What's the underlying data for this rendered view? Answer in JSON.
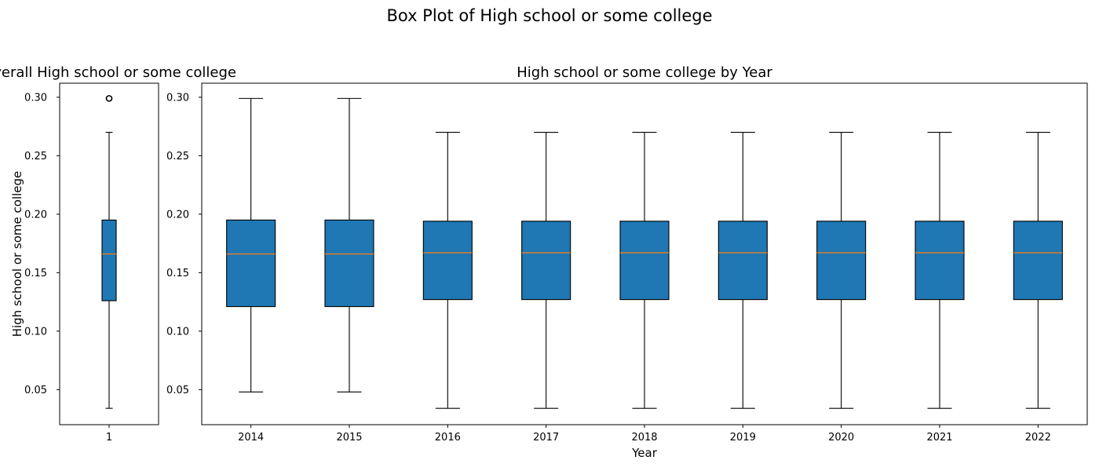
{
  "suptitle": "Box Plot of High school or some college",
  "colors": {
    "box_fill": "#1f77b4",
    "median": "#ff7f0e",
    "edge": "#000000"
  },
  "chart_data": [
    {
      "type": "box",
      "title": "Overall High school or some college",
      "xlabel": "",
      "ylabel": "High school or some college",
      "ylim": [
        0.02,
        0.312
      ],
      "yticks": [
        0.05,
        0.1,
        0.15,
        0.2,
        0.25,
        0.3
      ],
      "ytick_labels": [
        "0.05",
        "0.10",
        "0.15",
        "0.20",
        "0.25",
        "0.30"
      ],
      "categories": [
        "1"
      ],
      "boxes": [
        {
          "whislo": 0.034,
          "q1": 0.126,
          "med": 0.166,
          "q3": 0.195,
          "whishi": 0.27,
          "fliers": [
            0.299
          ]
        }
      ]
    },
    {
      "type": "box",
      "title": "High school or some college by Year",
      "xlabel": "Year",
      "ylabel": "",
      "ylim": [
        0.02,
        0.312
      ],
      "yticks": [
        0.05,
        0.1,
        0.15,
        0.2,
        0.25,
        0.3
      ],
      "ytick_labels": [
        "0.05",
        "0.10",
        "0.15",
        "0.20",
        "0.25",
        "0.30"
      ],
      "categories": [
        "2014",
        "2015",
        "2016",
        "2017",
        "2018",
        "2019",
        "2020",
        "2021",
        "2022"
      ],
      "boxes": [
        {
          "whislo": 0.048,
          "q1": 0.121,
          "med": 0.166,
          "q3": 0.195,
          "whishi": 0.299,
          "fliers": []
        },
        {
          "whislo": 0.048,
          "q1": 0.121,
          "med": 0.166,
          "q3": 0.195,
          "whishi": 0.299,
          "fliers": []
        },
        {
          "whislo": 0.034,
          "q1": 0.127,
          "med": 0.167,
          "q3": 0.194,
          "whishi": 0.27,
          "fliers": []
        },
        {
          "whislo": 0.034,
          "q1": 0.127,
          "med": 0.167,
          "q3": 0.194,
          "whishi": 0.27,
          "fliers": []
        },
        {
          "whislo": 0.034,
          "q1": 0.127,
          "med": 0.167,
          "q3": 0.194,
          "whishi": 0.27,
          "fliers": []
        },
        {
          "whislo": 0.034,
          "q1": 0.127,
          "med": 0.167,
          "q3": 0.194,
          "whishi": 0.27,
          "fliers": []
        },
        {
          "whislo": 0.034,
          "q1": 0.127,
          "med": 0.167,
          "q3": 0.194,
          "whishi": 0.27,
          "fliers": []
        },
        {
          "whislo": 0.034,
          "q1": 0.127,
          "med": 0.167,
          "q3": 0.194,
          "whishi": 0.27,
          "fliers": []
        },
        {
          "whislo": 0.034,
          "q1": 0.127,
          "med": 0.167,
          "q3": 0.194,
          "whishi": 0.27,
          "fliers": []
        }
      ]
    }
  ]
}
